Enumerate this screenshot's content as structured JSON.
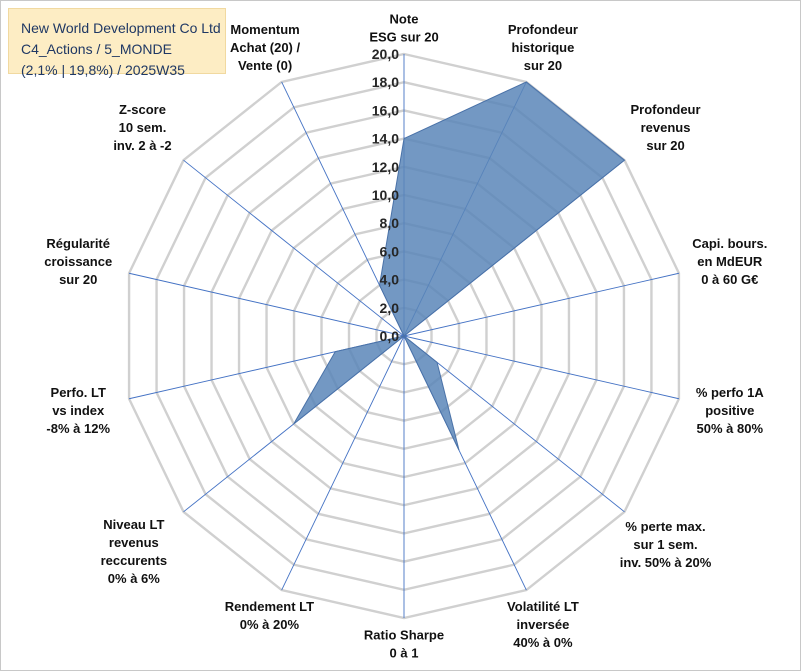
{
  "title": {
    "line1": "New World Development Co Ltd",
    "line2": "C4_Actions / 5_MONDE",
    "line3": "(2,1% | 19,8%) / 2025W35"
  },
  "colors": {
    "fill": "#5a86b8",
    "stroke": "#4a72a8",
    "grid": "#d0d0d0",
    "spoke": "#4472c4",
    "title_bg": "#fdedc4",
    "title_text": "#1f3864"
  },
  "chart_data": {
    "type": "radar",
    "rmin": 0,
    "rmax": 20,
    "tick_step": 2,
    "tick_labels": [
      "0,0",
      "2,0",
      "4,0",
      "6,0",
      "8,0",
      "10,0",
      "12,0",
      "14,0",
      "16,0",
      "18,0",
      "20,0"
    ],
    "axes": [
      {
        "lines": [
          "Note",
          "ESG sur 20"
        ],
        "value": 14.0
      },
      {
        "lines": [
          "Profondeur",
          "historique",
          "sur 20"
        ],
        "value": 20.0
      },
      {
        "lines": [
          "Profondeur",
          "revenus",
          "sur 20"
        ],
        "value": 20.0
      },
      {
        "lines": [
          "Capi. bours.",
          "en MdEUR",
          "0 à 60 G€"
        ],
        "value": 0.0
      },
      {
        "lines": [
          "% perfo 1A",
          "positive",
          "50% à 80%"
        ],
        "value": 0.0
      },
      {
        "lines": [
          "% perte max.",
          "sur 1 sem.",
          "inv. 50% à 20%"
        ],
        "value": 3.0
      },
      {
        "lines": [
          "Volatilité LT",
          "inversée",
          "40% à 0%"
        ],
        "value": 9.0
      },
      {
        "lines": [
          "Ratio Sharpe",
          "0 à 1"
        ],
        "value": 0.0
      },
      {
        "lines": [
          "Rendement LT",
          "0% à 20%"
        ],
        "value": 0.0
      },
      {
        "lines": [
          "Niveau LT",
          "revenus",
          "reccurents",
          "0% à 6%"
        ],
        "value": 10.0
      },
      {
        "lines": [
          "Perfo. LT",
          "vs index",
          "-8% à 12%"
        ],
        "value": 5.0
      },
      {
        "lines": [
          "Régularité",
          "croissance",
          "sur 20"
        ],
        "value": 0.0
      },
      {
        "lines": [
          "Z-score",
          "10 sem.",
          "inv. 2 à -2"
        ],
        "value": 0.0
      },
      {
        "lines": [
          "Momentum",
          "Achat (20) /",
          "Vente (0)"
        ],
        "value": 4.0
      }
    ]
  }
}
